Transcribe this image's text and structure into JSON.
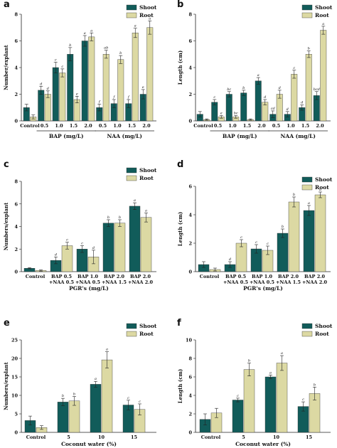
{
  "colors": {
    "shoot": "#115c5a",
    "root": "#dcd9a3"
  },
  "chart_data": [
    {
      "panel": "a",
      "type": "bar",
      "ylabel": "Number/explant",
      "ylim": [
        0,
        8
      ],
      "yticks": [
        0,
        2,
        4,
        6,
        8
      ],
      "categories": [
        "Control",
        "0.5",
        "1.0",
        "1.5",
        "2.0",
        "0.5",
        "1.0",
        "1.5",
        "2.0"
      ],
      "groups": [
        {
          "label": "BAP (mg/L)",
          "from": 1,
          "to": 4
        },
        {
          "label": "NAA (mg/L)",
          "from": 5,
          "to": 8
        }
      ],
      "series": [
        {
          "name": "Shoot",
          "values": [
            1.0,
            2.3,
            4.0,
            5.0,
            6.0,
            1.0,
            1.3,
            1.3,
            2.0
          ],
          "errors": [
            0.25,
            0.3,
            0.4,
            0.5,
            0.4,
            0.25,
            0.3,
            0.3,
            0.35
          ],
          "letters": [
            "",
            "d",
            "c",
            "b",
            "a",
            "f",
            "f",
            "f",
            "e"
          ]
        },
        {
          "name": "Root",
          "values": [
            0.3,
            2.0,
            3.6,
            1.6,
            6.3,
            5.0,
            4.6,
            6.6,
            7.0
          ],
          "errors": [
            0.15,
            0.25,
            0.3,
            0.25,
            0.3,
            0.3,
            0.3,
            0.35,
            0.5
          ],
          "letters": [
            "",
            "d",
            "c",
            "e",
            "a",
            "ab",
            "b",
            "a",
            "a"
          ]
        }
      ]
    },
    {
      "panel": "b",
      "type": "bar",
      "ylabel": "Length (cm)",
      "ylim": [
        0,
        8
      ],
      "yticks": [
        0,
        2,
        4,
        6,
        8
      ],
      "categories": [
        "Control",
        "0.5",
        "1.0",
        "1.5",
        "2.0",
        "0.5",
        "1.0",
        "1.5",
        "2.0"
      ],
      "groups": [
        {
          "label": "BAP (mg/L)",
          "from": 1,
          "to": 4
        },
        {
          "label": "NAA (mg/L)",
          "from": 5,
          "to": 8
        }
      ],
      "series": [
        {
          "name": "Shoot",
          "values": [
            0.5,
            1.4,
            2.0,
            2.1,
            3.0,
            0.5,
            0.5,
            1.0,
            1.9
          ],
          "errors": [
            0.2,
            0.2,
            0.2,
            0.2,
            0.25,
            0.25,
            0.2,
            0.2,
            0.3
          ],
          "letters": [
            "",
            "c",
            "bc",
            "b",
            "a",
            "cd",
            "d",
            "d",
            "bcd"
          ]
        },
        {
          "name": "Root",
          "values": [
            0.1,
            0.3,
            0.3,
            0.1,
            1.4,
            2.0,
            3.5,
            5.0,
            6.8
          ],
          "errors": [
            0.05,
            0.1,
            0.1,
            0.05,
            0.2,
            0.3,
            0.3,
            0.25,
            0.3
          ],
          "letters": [
            "",
            "e",
            "bc",
            "",
            "d",
            "d",
            "c",
            "b",
            "a"
          ]
        }
      ]
    },
    {
      "panel": "c",
      "type": "bar",
      "ylabel": "Numbers/explant",
      "xlabel": "PGR's (mg/L)",
      "ylim": [
        0,
        8
      ],
      "yticks": [
        0,
        2,
        4,
        6,
        8
      ],
      "categories": [
        [
          "Control"
        ],
        [
          "BAP 0.5",
          "+NAA 0.5"
        ],
        [
          "BAP 1.0",
          "+NAA 0.5"
        ],
        [
          "BAP 2.0",
          "+NAA 1.5"
        ],
        [
          "BAP 2.0",
          "+NAA 2.0"
        ]
      ],
      "series": [
        {
          "name": "Shoot",
          "values": [
            0.3,
            1.0,
            2.0,
            4.3,
            5.8
          ],
          "errors": [
            0.05,
            0.3,
            0.3,
            0.3,
            0.3
          ],
          "letters": [
            "",
            "d",
            "c",
            "b",
            "a"
          ]
        },
        {
          "name": "Root",
          "values": [
            0.1,
            2.3,
            1.3,
            4.3,
            4.8
          ],
          "errors": [
            0.05,
            0.3,
            0.6,
            0.3,
            0.4
          ],
          "letters": [
            "",
            "c",
            "d",
            "b",
            "a"
          ]
        }
      ]
    },
    {
      "panel": "d",
      "type": "bar",
      "ylabel": "Length (cm)",
      "xlabel": "PGR's (mg/L)",
      "ylim": [
        0,
        6
      ],
      "yticks": [
        0,
        2,
        4,
        6
      ],
      "categories": [
        [
          "Control"
        ],
        [
          "BAP 0.5",
          "+NAA 0.5"
        ],
        [
          "BAP 1.0",
          "+NAA 0.5"
        ],
        [
          "BAP 2.0",
          "+NAA 1.5"
        ],
        [
          "BAP 2.0",
          "+NAA 2.0"
        ]
      ],
      "series": [
        {
          "name": "Shoot",
          "values": [
            0.5,
            0.5,
            1.6,
            2.7,
            4.3
          ],
          "errors": [
            0.2,
            0.2,
            0.3,
            0.3,
            0.35
          ],
          "letters": [
            "",
            "d",
            "c",
            "b",
            "a"
          ]
        },
        {
          "name": "Root",
          "values": [
            0.15,
            2.0,
            1.5,
            4.9,
            5.4
          ],
          "errors": [
            0.1,
            0.25,
            0.3,
            0.35,
            0.2
          ],
          "letters": [
            "",
            "c",
            "c",
            "b",
            "a"
          ]
        }
      ]
    },
    {
      "panel": "e",
      "type": "bar",
      "ylabel": "Numbers/explant",
      "xlabel": "Coconut water (%)",
      "ylim": [
        0,
        25
      ],
      "yticks": [
        0,
        5,
        10,
        15,
        20,
        25
      ],
      "categories": [
        [
          "Control"
        ],
        [
          "5"
        ],
        [
          "10"
        ],
        [
          "15"
        ]
      ],
      "series": [
        {
          "name": "Shoot",
          "values": [
            3.2,
            8.2,
            13.0,
            7.4
          ],
          "errors": [
            1.2,
            1.0,
            0.8,
            1.3
          ],
          "letters": [
            "",
            "b",
            "a",
            "c"
          ]
        },
        {
          "name": "Root",
          "values": [
            1.3,
            8.5,
            19.6,
            6.2
          ],
          "errors": [
            0.5,
            1.2,
            2.2,
            1.5
          ],
          "letters": [
            "",
            "b",
            "a",
            "c"
          ]
        }
      ]
    },
    {
      "panel": "f",
      "type": "bar",
      "ylabel": "Length (cm)",
      "xlabel": "Coconut water (%)",
      "ylim": [
        0,
        10
      ],
      "yticks": [
        0,
        2,
        4,
        6,
        8,
        10
      ],
      "categories": [
        [
          "Control"
        ],
        [
          "5"
        ],
        [
          "10"
        ],
        [
          "15"
        ]
      ],
      "series": [
        {
          "name": "Shoot",
          "values": [
            1.4,
            3.5,
            6.0,
            2.8
          ],
          "errors": [
            0.6,
            0.2,
            0.2,
            0.5
          ],
          "letters": [
            "",
            "c",
            "a",
            "c"
          ]
        },
        {
          "name": "Root",
          "values": [
            2.1,
            6.8,
            7.5,
            4.2
          ],
          "errors": [
            0.5,
            0.7,
            0.8,
            0.7
          ],
          "letters": [
            "",
            "b",
            "a",
            "b"
          ]
        }
      ]
    }
  ]
}
